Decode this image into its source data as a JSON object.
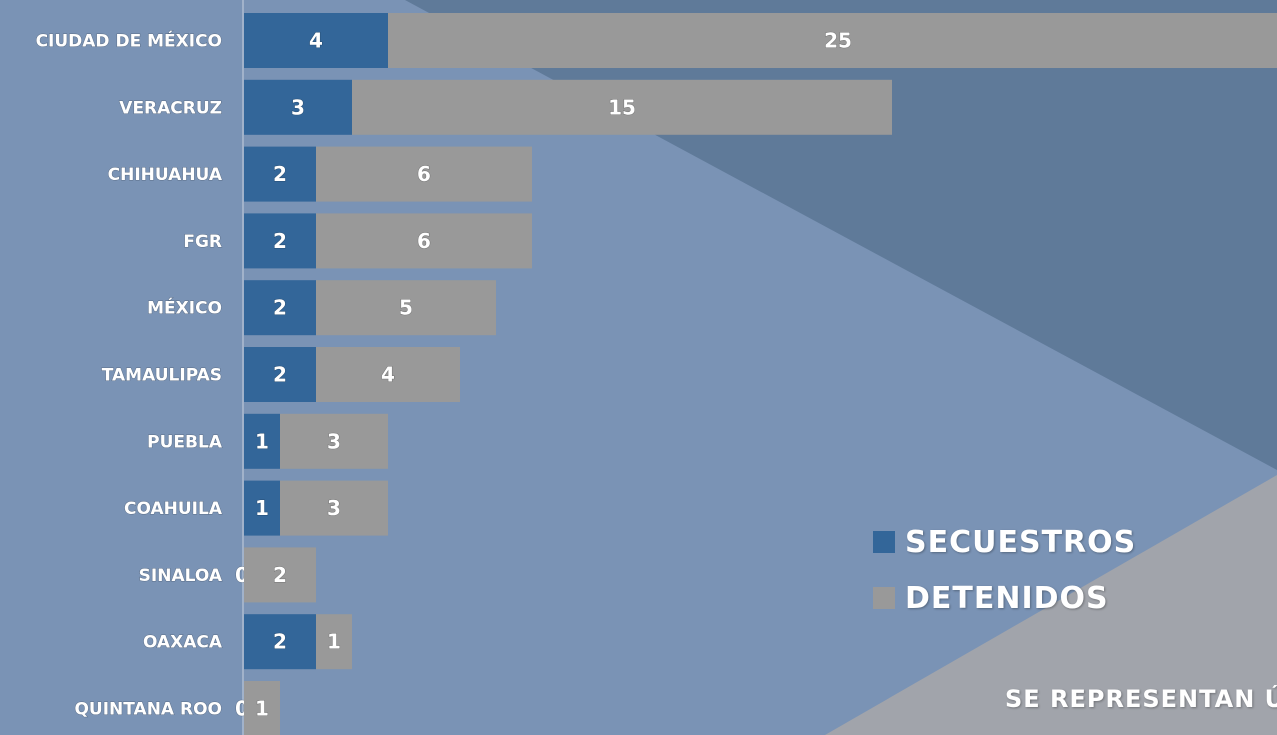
{
  "colors": {
    "background": "#7a93b5",
    "background_dark": "#5f7a99",
    "background_gray": "#a1a4ab",
    "secuestros": "#336699",
    "detenidos": "#999999"
  },
  "legend": {
    "items": [
      {
        "label": "SECUESTROS",
        "color": "#336699"
      },
      {
        "label": "DETENIDOS",
        "color": "#999999"
      }
    ]
  },
  "note": {
    "text": "SE REPRESENTAN Ú"
  },
  "chart_data": {
    "type": "bar",
    "orientation": "horizontal",
    "stacked": true,
    "categories": [
      "CIUDAD DE MÉXICO",
      "VERACRUZ",
      "CHIHUAHUA",
      "FGR",
      "MÉXICO",
      "TAMAULIPAS",
      "PUEBLA",
      "COAHUILA",
      "SINALOA",
      "OAXACA",
      "QUINTANA ROO"
    ],
    "series": [
      {
        "name": "SECUESTROS",
        "values": [
          4,
          3,
          2,
          2,
          2,
          2,
          1,
          1,
          0,
          2,
          0
        ],
        "color": "#336699"
      },
      {
        "name": "DETENIDOS",
        "values": [
          25,
          15,
          6,
          6,
          5,
          4,
          3,
          3,
          2,
          1,
          1
        ],
        "color": "#999999"
      }
    ],
    "xlim": [
      0,
      29
    ],
    "grid": false,
    "legend_position": "right"
  }
}
